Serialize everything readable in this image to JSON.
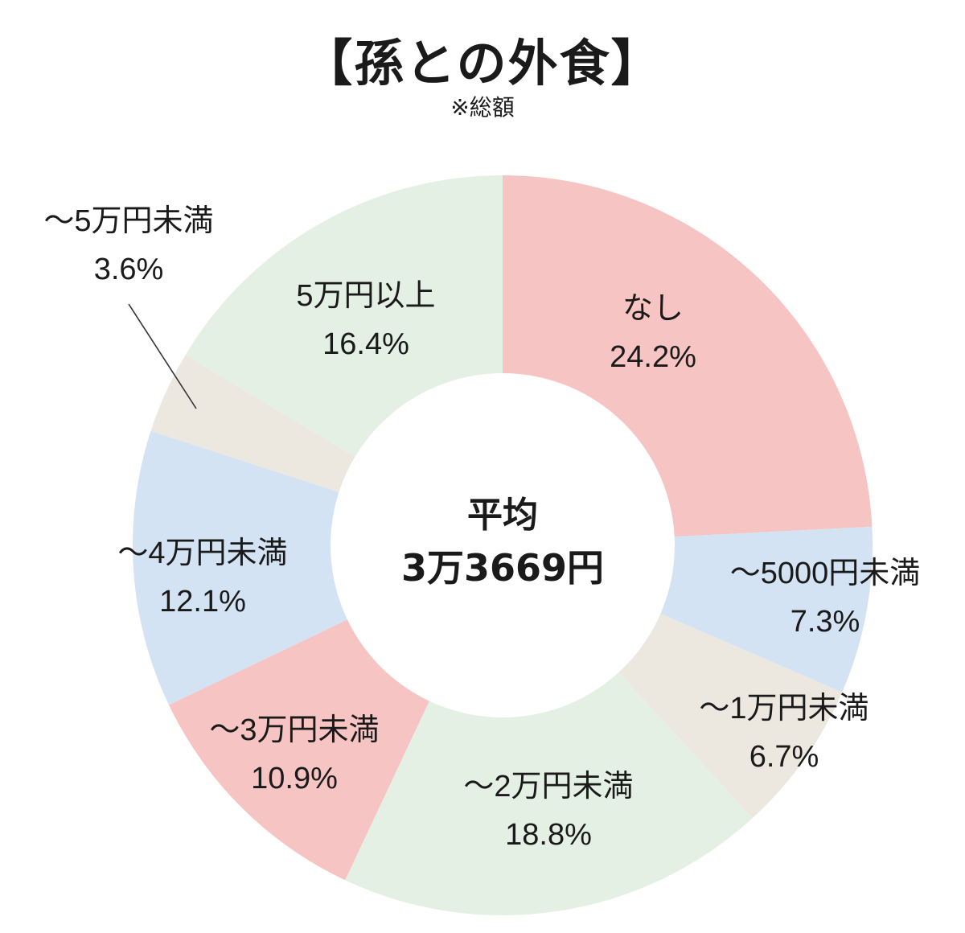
{
  "title": "【孫との外食】",
  "subtitle": "※総額",
  "center": {
    "line1": "平均",
    "line2": "3万3669円"
  },
  "chart_data": {
    "type": "pie",
    "title": "【孫との外食】",
    "subtitle": "※総額",
    "slices": [
      {
        "label": "なし",
        "value": 24.2,
        "value_label": "24.2%",
        "color": "#f6c4c2"
      },
      {
        "label": "～5000円未満",
        "value": 7.3,
        "value_label": "7.3%",
        "color": "#d3e3f3"
      },
      {
        "label": "～1万円未満",
        "value": 6.7,
        "value_label": "6.7%",
        "color": "#ece8e0"
      },
      {
        "label": "～2万円未満",
        "value": 18.8,
        "value_label": "18.8%",
        "color": "#e4f0e4"
      },
      {
        "label": "～3万円未満",
        "value": 10.9,
        "value_label": "10.9%",
        "color": "#f6c4c2"
      },
      {
        "label": "～4万円未満",
        "value": 12.1,
        "value_label": "12.1%",
        "color": "#d3e3f3"
      },
      {
        "label": "～5万円未満",
        "value": 3.6,
        "value_label": "3.6%",
        "color": "#ece8e0"
      },
      {
        "label": "5万円以上",
        "value": 16.4,
        "value_label": "16.4%",
        "color": "#e4f0e4"
      }
    ],
    "donut": true
  }
}
